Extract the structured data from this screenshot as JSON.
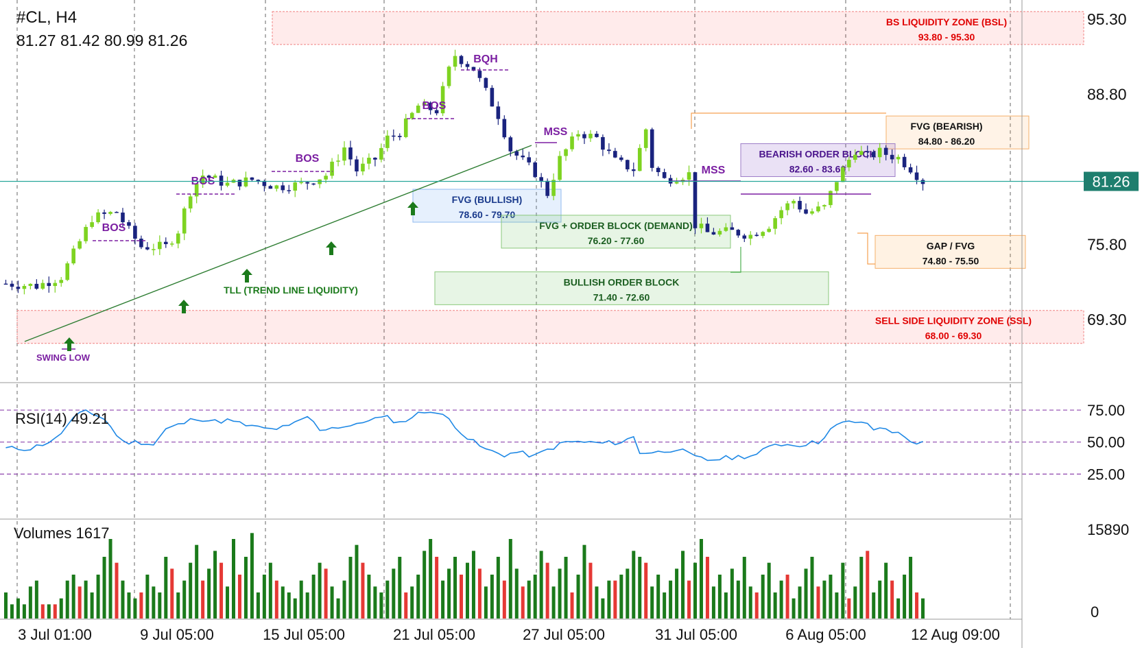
{
  "header": {
    "symbol": "#CL, H4",
    "ohlc": "81.27 81.42 80.99 81.26"
  },
  "colors": {
    "bull": "#7ed321",
    "bear": "#1a237e",
    "vol_up": "#1b7a1b",
    "vol_down": "#e53935",
    "rsi_line": "#1e88e5",
    "level": "#26a69a",
    "purple": "#7b1fa2"
  },
  "chart_data": [
    {
      "type": "candlestick",
      "title": "",
      "ylim": [
        64.0,
        96.5
      ],
      "y_ticks": [
        "95.30",
        "88.80",
        "81.26",
        "75.80",
        "69.30"
      ],
      "x_tick_labels": [
        "3 Jul 01:00",
        "9 Jul 05:00",
        "15 Jul 05:00",
        "21 Jul 05:00",
        "27 Jul 05:00",
        "31 Jul 05:00",
        "6 Aug 05:00",
        "12 Aug 09:00"
      ],
      "last_price": "81.26",
      "close_path": [
        [
          0,
          72.4
        ],
        [
          5,
          72.2
        ],
        [
          9,
          73.0
        ],
        [
          11,
          75.0
        ],
        [
          14,
          78.1
        ],
        [
          18,
          78.6
        ],
        [
          20,
          77.0
        ],
        [
          22,
          75.6
        ],
        [
          26,
          75.6
        ],
        [
          28,
          77.0
        ],
        [
          30,
          80.4
        ],
        [
          32,
          81.8
        ],
        [
          36,
          81.0
        ],
        [
          40,
          81.4
        ],
        [
          44,
          80.8
        ],
        [
          48,
          81.0
        ],
        [
          52,
          81.8
        ],
        [
          55,
          84.2
        ],
        [
          57,
          82.2
        ],
        [
          60,
          83.2
        ],
        [
          62,
          85.0
        ],
        [
          64,
          85.5
        ],
        [
          67,
          87.8
        ],
        [
          70,
          87.4
        ],
        [
          72,
          90.9
        ],
        [
          73,
          92.2
        ],
        [
          76,
          91.0
        ],
        [
          78,
          89.0
        ],
        [
          80,
          87.0
        ],
        [
          82,
          84.0
        ],
        [
          84,
          83.0
        ],
        [
          86,
          82.0
        ],
        [
          88,
          80.2
        ],
        [
          90,
          83.2
        ],
        [
          93,
          85.5
        ],
        [
          96,
          85.0
        ],
        [
          99,
          83.0
        ],
        [
          102,
          82.3
        ],
        [
          104,
          85.8
        ],
        [
          105,
          82.6
        ],
        [
          107,
          81.4
        ],
        [
          111,
          81.9
        ],
        [
          112,
          77.5
        ],
        [
          114,
          76.8
        ],
        [
          118,
          76.9
        ],
        [
          121,
          76.6
        ],
        [
          124,
          77.5
        ],
        [
          126,
          78.8
        ],
        [
          128,
          79.6
        ],
        [
          130,
          78.5
        ],
        [
          133,
          79.0
        ],
        [
          135,
          81.4
        ],
        [
          138,
          84.0
        ],
        [
          140,
          83.4
        ],
        [
          142,
          83.8
        ],
        [
          145,
          83.3
        ],
        [
          147,
          82.4
        ],
        [
          149,
          81.26
        ]
      ],
      "annotations": {
        "bos_labels": [
          "BOS",
          "BOS",
          "BOS",
          "BOS"
        ],
        "bqh": "BQH",
        "mss": [
          "MSS",
          "MSS"
        ],
        "swing_low": "SWING LOW",
        "tll": "TLL (TREND LINE LIQUIDITY)"
      },
      "zones": [
        {
          "label": "BS LIQUIDITY ZONE (BSL)",
          "range": "93.80 - 95.30",
          "low": 93.8,
          "high": 95.3
        },
        {
          "label": "FVG (BEARISH)",
          "range": "84.80 - 86.20",
          "low": 84.8,
          "high": 86.2
        },
        {
          "label": "BEARISH ORDER BLOCK",
          "range": "82.60 - 83.60",
          "low": 82.6,
          "high": 83.6
        },
        {
          "label": "FVG (BULLISH)",
          "range": "78.60 - 79.70",
          "low": 78.6,
          "high": 79.7
        },
        {
          "label": "FVG + ORDER BLOCK (DEMAND)",
          "range": "76.20 - 77.60",
          "low": 76.2,
          "high": 77.6
        },
        {
          "label": "GAP / FVG",
          "range": "74.80 - 75.50",
          "low": 74.8,
          "high": 75.5
        },
        {
          "label": "BULLISH ORDER BLOCK",
          "range": "71.40 - 72.60",
          "low": 71.4,
          "high": 72.6
        },
        {
          "label": "SELL SIDE LIQUIDITY ZONE (SSL)",
          "range": "68.00 - 69.30",
          "low": 68.0,
          "high": 69.3
        }
      ]
    },
    {
      "type": "line",
      "title": "",
      "name": "RSI(14) 49.21",
      "ylim": [
        15,
        82
      ],
      "levels": [
        25,
        50,
        75
      ],
      "y_ticks": [
        "75.00",
        "50.00",
        "25.00"
      ],
      "rsi_path": [
        [
          0,
          45
        ],
        [
          4,
          45
        ],
        [
          8,
          52
        ],
        [
          11,
          68
        ],
        [
          13,
          75
        ],
        [
          16,
          68
        ],
        [
          19,
          50
        ],
        [
          22,
          50
        ],
        [
          24,
          48
        ],
        [
          26,
          60
        ],
        [
          29,
          65
        ],
        [
          31,
          69
        ],
        [
          34,
          66
        ],
        [
          36,
          67
        ],
        [
          40,
          62
        ],
        [
          43,
          60
        ],
        [
          46,
          62
        ],
        [
          49,
          70
        ],
        [
          51,
          60
        ],
        [
          54,
          62
        ],
        [
          57,
          63
        ],
        [
          59,
          68
        ],
        [
          62,
          69
        ],
        [
          64,
          65
        ],
        [
          67,
          72
        ],
        [
          69,
          75
        ],
        [
          72,
          68
        ],
        [
          75,
          53
        ],
        [
          78,
          44
        ],
        [
          81,
          40
        ],
        [
          83,
          42
        ],
        [
          86,
          39
        ],
        [
          88,
          44
        ],
        [
          91,
          50
        ],
        [
          94,
          50
        ],
        [
          97,
          49
        ],
        [
          100,
          50
        ],
        [
          102,
          54
        ],
        [
          103,
          42
        ],
        [
          106,
          42
        ],
        [
          109,
          45
        ],
        [
          112,
          38
        ],
        [
          114,
          36
        ],
        [
          118,
          38
        ],
        [
          122,
          40
        ],
        [
          125,
          49
        ],
        [
          127,
          48
        ],
        [
          129,
          48
        ],
        [
          132,
          50
        ],
        [
          134,
          60
        ],
        [
          136,
          65
        ],
        [
          139,
          66
        ],
        [
          141,
          60
        ],
        [
          143,
          61
        ],
        [
          146,
          54
        ],
        [
          148,
          49
        ],
        [
          150,
          49
        ]
      ]
    },
    {
      "type": "bar",
      "title": "",
      "name": "Volumes 1617",
      "ylim": [
        0,
        15890
      ],
      "y_ticks": [
        "15890",
        "0"
      ],
      "volumes": [
        3,
        1,
        2,
        0,
        4,
        5,
        -1,
        0,
        -1,
        2,
        5,
        6,
        -4,
        5,
        3,
        6,
        9,
        12,
        -8,
        5,
        3,
        2,
        -3,
        6,
        4,
        3,
        9,
        -7,
        3,
        5,
        8,
        11,
        -5,
        7,
        10,
        -8,
        4,
        12,
        -6,
        9,
        13,
        3,
        6,
        8,
        -5,
        4,
        3,
        2,
        5,
        3,
        6,
        8,
        -7,
        4,
        2,
        5,
        9,
        11,
        -8,
        6,
        4,
        3,
        5,
        7,
        9,
        -3,
        4,
        6,
        10,
        12,
        -9,
        5,
        7,
        9,
        -6,
        8,
        10,
        -7,
        4,
        6,
        9,
        -5,
        12,
        7,
        -4,
        5,
        6,
        10,
        -8,
        4,
        7,
        9,
        -3,
        6,
        11,
        -8,
        4,
        2,
        5,
        -5,
        6,
        7,
        10,
        9,
        -8,
        4,
        6,
        3,
        5,
        7,
        10,
        -5,
        8,
        12,
        -9,
        4,
        6,
        3,
        7,
        5,
        9,
        4,
        -3,
        6,
        8,
        3,
        5,
        -6,
        2,
        4,
        7,
        9,
        -4,
        5,
        6,
        3,
        8,
        -2,
        4,
        9,
        -10,
        3,
        5,
        8,
        -5,
        2,
        6,
        9,
        -3,
        2
      ]
    }
  ],
  "rsi": {
    "label": "RSI(14) 49.21"
  },
  "volume": {
    "label": "Volumes 1617"
  }
}
